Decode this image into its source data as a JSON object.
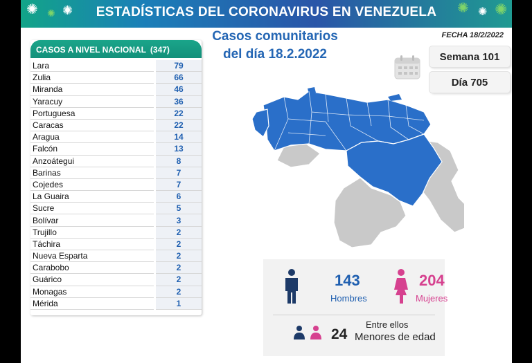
{
  "header": {
    "title": "ESTADÍSTICAS DEL CORONAVIRUS EN VENEZUELA"
  },
  "date": "FECHA 18/2/2022",
  "subtitle": {
    "line1": "Casos comunitarios",
    "line2": "del día 18.2.2022"
  },
  "table": {
    "heading": "CASOS A NIVEL NACIONAL",
    "total": "(347)",
    "rows": [
      {
        "state": "Lara",
        "cases": "79"
      },
      {
        "state": "Zulia",
        "cases": "66"
      },
      {
        "state": "Miranda",
        "cases": "46"
      },
      {
        "state": "Yaracuy",
        "cases": "36"
      },
      {
        "state": "Portuguesa",
        "cases": "22"
      },
      {
        "state": "Caracas",
        "cases": "22"
      },
      {
        "state": "Aragua",
        "cases": "14"
      },
      {
        "state": "Falcón",
        "cases": "13"
      },
      {
        "state": "Anzoátegui",
        "cases": "8"
      },
      {
        "state": "Barinas",
        "cases": "7"
      },
      {
        "state": "Cojedes",
        "cases": "7"
      },
      {
        "state": "La Guaira",
        "cases": "6"
      },
      {
        "state": "Sucre",
        "cases": "5"
      },
      {
        "state": "Bolívar",
        "cases": "3"
      },
      {
        "state": "Trujillo",
        "cases": "2"
      },
      {
        "state": "Táchira",
        "cases": "2"
      },
      {
        "state": "Nueva Esparta",
        "cases": "2"
      },
      {
        "state": "Carabobo",
        "cases": "2"
      },
      {
        "state": "Guárico",
        "cases": "2"
      },
      {
        "state": "Monagas",
        "cases": "2"
      },
      {
        "state": "Mérida",
        "cases": "1"
      }
    ]
  },
  "week": "Semana 101",
  "day": "Día 705",
  "stats": {
    "men_count": "143",
    "men_label": "Hombres",
    "women_count": "204",
    "women_label": "Mujeres",
    "among_label": "Entre ellos",
    "minors_count": "24",
    "minors_label": "Menores de edad"
  },
  "colors": {
    "blue": "#1f5fb0",
    "pink": "#d6418f",
    "green": "#13907a",
    "map_blue": "#2a6fc9",
    "map_gray": "#c9c9c9"
  },
  "icons": [
    "virus-icon",
    "calendar-icon",
    "man-icon",
    "woman-icon",
    "children-icon"
  ]
}
